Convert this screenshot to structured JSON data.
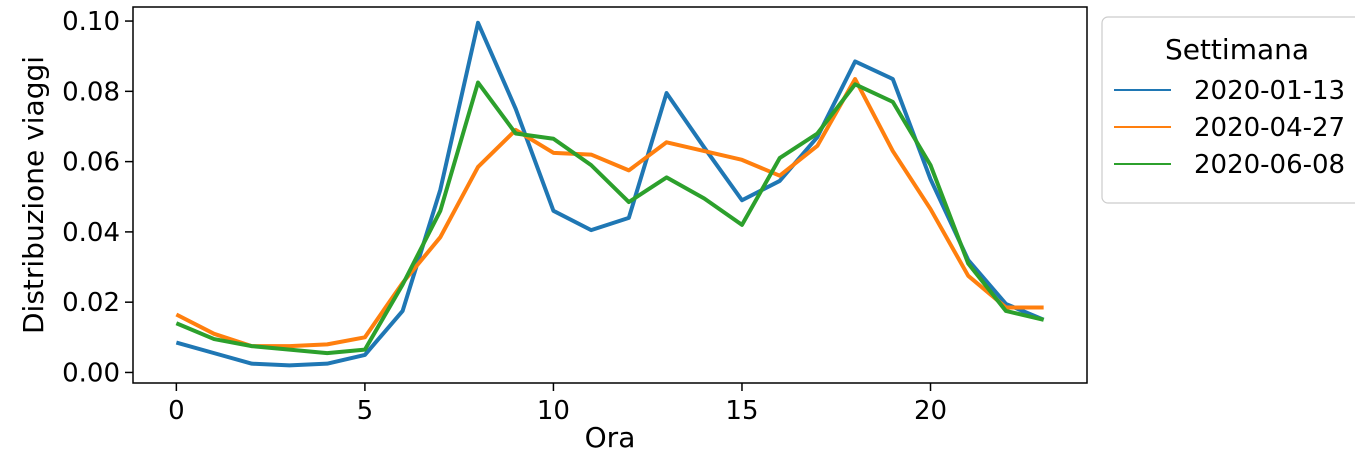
{
  "chart_data": {
    "type": "line",
    "xlabel": "Ora",
    "ylabel": "Distribuzione viaggi",
    "xlim": [
      -1.15,
      24.15
    ],
    "ylim": [
      -0.003,
      0.104
    ],
    "xticks": [
      0,
      5,
      10,
      15,
      20
    ],
    "yticks": [
      0.0,
      0.02,
      0.04,
      0.06,
      0.08,
      0.1
    ],
    "ytick_labels": [
      "0.00",
      "0.02",
      "0.04",
      "0.06",
      "0.08",
      "0.10"
    ],
    "grid": false,
    "legend": {
      "title": "Settimana",
      "placement": "outside-right"
    },
    "x": [
      0,
      1,
      2,
      3,
      4,
      5,
      6,
      7,
      8,
      9,
      10,
      11,
      12,
      13,
      14,
      15,
      16,
      17,
      18,
      19,
      20,
      21,
      22,
      23
    ],
    "series": [
      {
        "name": "2020-01-13",
        "color": "#1f77b4",
        "values": [
          0.0085,
          0.0055,
          0.0025,
          0.002,
          0.0025,
          0.005,
          0.0175,
          0.052,
          0.0995,
          0.075,
          0.046,
          0.0405,
          0.044,
          0.0795,
          0.064,
          0.049,
          0.0545,
          0.067,
          0.0885,
          0.0835,
          0.055,
          0.032,
          0.0195,
          0.015
        ]
      },
      {
        "name": "2020-04-27",
        "color": "#ff7f0e",
        "values": [
          0.0165,
          0.011,
          0.0075,
          0.0075,
          0.008,
          0.01,
          0.0255,
          0.0385,
          0.0585,
          0.069,
          0.0625,
          0.062,
          0.0575,
          0.0655,
          0.063,
          0.0605,
          0.056,
          0.0645,
          0.0835,
          0.063,
          0.0465,
          0.0275,
          0.0185,
          0.0185
        ]
      },
      {
        "name": "2020-06-08",
        "color": "#2ca02c",
        "values": [
          0.014,
          0.0095,
          0.0075,
          0.0065,
          0.0055,
          0.0065,
          0.025,
          0.046,
          0.0825,
          0.068,
          0.0665,
          0.059,
          0.0485,
          0.0555,
          0.0495,
          0.042,
          0.061,
          0.068,
          0.082,
          0.077,
          0.059,
          0.031,
          0.0175,
          0.015
        ]
      }
    ]
  }
}
